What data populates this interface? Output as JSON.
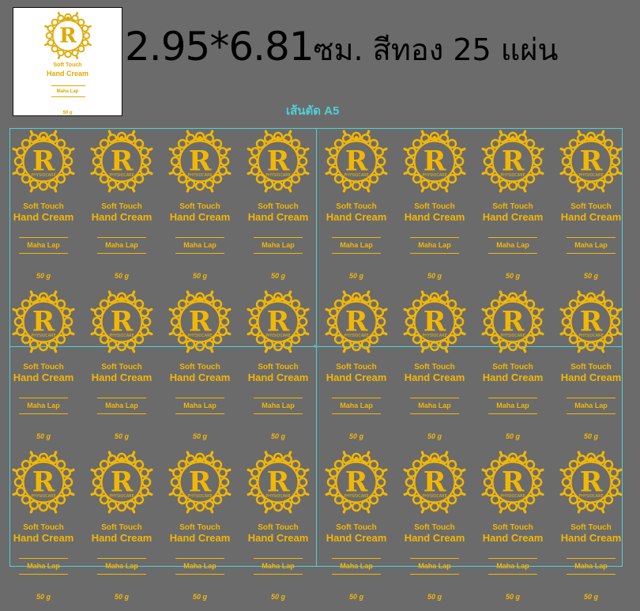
{
  "title": {
    "size": "2.95*6.81",
    "rest": "ซม. สีทอง 25 แผ่น"
  },
  "cut_label": "เส้นตัด A5",
  "label": {
    "logo_letter": "R",
    "logo_small_text": "PHYSIOCARE",
    "line1": "Soft Touch",
    "line2": "Hand Cream",
    "brand": "Maha Lap",
    "weight": "50 g"
  },
  "colors": {
    "background": "#6b6b6b",
    "gold": "#f2b705",
    "preview_gold": "#e0a800",
    "cut_line": "#4fd0d8",
    "preview_bg": "#ffffff"
  },
  "grid": {
    "rows": 3,
    "columns": 8
  }
}
